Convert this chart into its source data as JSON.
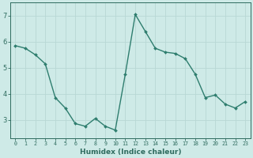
{
  "x": [
    0,
    1,
    2,
    3,
    4,
    5,
    6,
    7,
    8,
    9,
    10,
    11,
    12,
    13,
    14,
    15,
    16,
    17,
    18,
    19,
    20,
    21,
    22,
    23
  ],
  "y": [
    5.85,
    5.75,
    5.5,
    5.15,
    3.85,
    3.45,
    2.85,
    2.75,
    3.05,
    2.75,
    2.6,
    4.75,
    7.05,
    6.4,
    5.75,
    5.6,
    5.55,
    5.35,
    4.75,
    3.85,
    3.95,
    3.6,
    3.45,
    3.7
  ],
  "line_color": "#2e7d6e",
  "marker": "D",
  "markersize": 2.0,
  "linewidth": 1.0,
  "bg_color": "#ceeae7",
  "grid_color": "#b8d8d5",
  "tick_color": "#2e6b5e",
  "xlabel": "Humidex (Indice chaleur)",
  "xlabel_fontsize": 6.5,
  "ylabel_ticks": [
    3,
    4,
    5,
    6,
    7
  ],
  "xlim": [
    -0.5,
    23.5
  ],
  "ylim": [
    2.3,
    7.5
  ],
  "xtick_fontsize": 4.8,
  "ytick_fontsize": 6.0
}
